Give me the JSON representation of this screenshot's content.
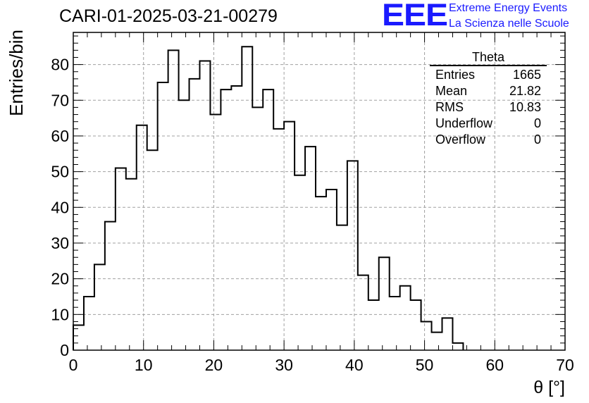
{
  "header": {
    "run_title": "CARI-01-2025-03-21-00279",
    "logo_text": "EEE",
    "logo_line1": "Extreme Energy Events",
    "logo_line2": "La Scienza nelle Scuole",
    "logo_color": "#1a1aff"
  },
  "stats_box": {
    "title": "Theta",
    "rows": [
      {
        "label": "Entries",
        "value": "1665"
      },
      {
        "label": "Mean",
        "value": "21.82"
      },
      {
        "label": "RMS",
        "value": "10.83"
      },
      {
        "label": "Underflow",
        "value": "0"
      },
      {
        "label": "Overflow",
        "value": "0"
      }
    ]
  },
  "chart_data": {
    "type": "histogram",
    "title": "CARI-01-2025-03-21-00279",
    "xlabel": "θ [°]",
    "ylabel": "Entries/bin",
    "xlim": [
      0,
      70
    ],
    "ylim": [
      0,
      89
    ],
    "bin_width": 1.5,
    "bin_start": 0,
    "values": [
      7,
      15,
      24,
      36,
      51,
      48,
      63,
      56,
      75,
      84,
      70,
      76,
      81,
      66,
      73,
      74,
      85,
      68,
      73,
      62,
      64,
      49,
      57,
      43,
      45,
      35,
      53,
      21,
      14,
      26,
      15,
      18,
      14,
      8,
      5,
      9,
      2
    ],
    "xticks": [
      0,
      10,
      20,
      30,
      40,
      50,
      60,
      70
    ],
    "yticks": [
      0,
      10,
      20,
      30,
      40,
      50,
      60,
      70,
      80
    ],
    "grid": true,
    "line_color": "#000000"
  }
}
